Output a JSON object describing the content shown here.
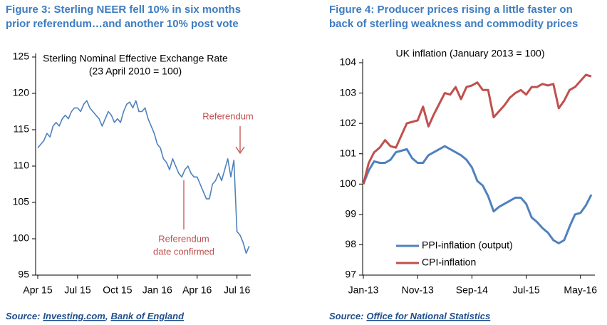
{
  "chart_data": [
    {
      "type": "line",
      "figure_title": [
        "Figure 3: Sterling NEER fell 10% in six months",
        "prior referendum…and another 10% post vote"
      ],
      "title": "Sterling Nominal Effective Exchange Rate",
      "subtitle": "(23 April 2010 = 100)",
      "color": "#4f81bd",
      "values": [
        112.5,
        113,
        113.5,
        114.5,
        114,
        115.5,
        116,
        115.5,
        116.5,
        117,
        116.5,
        117.5,
        118,
        118,
        117.5,
        118.5,
        119,
        118,
        117.5,
        117,
        116.5,
        115.5,
        116.5,
        117.5,
        117,
        116,
        116.5,
        116,
        117.5,
        118.5,
        118.8,
        118,
        119,
        117.5,
        117.5,
        118,
        116.5,
        115.5,
        114.5,
        113,
        112.5,
        111,
        110.5,
        109.5,
        111,
        110,
        109,
        108.5,
        109.5,
        110,
        109,
        108.5,
        108.5,
        107.5,
        106.5,
        105.5,
        105.5,
        107.5,
        108,
        109,
        108,
        109.5,
        111,
        108.5,
        110.8,
        101,
        100.5,
        99.5,
        98,
        99
      ],
      "xlim": [
        -0.7,
        69.5
      ],
      "xticks": [
        {
          "value": 0,
          "label": "Apr 15"
        },
        {
          "value": 13,
          "label": "Jul 15"
        },
        {
          "value": 26,
          "label": "Oct 15"
        },
        {
          "value": 39,
          "label": "Jan 16"
        },
        {
          "value": 52,
          "label": "Apr 16"
        },
        {
          "value": 65,
          "label": "Jul 16"
        }
      ],
      "ylim": [
        95,
        125
      ],
      "yticks": [
        95,
        100,
        105,
        110,
        115,
        120,
        125
      ],
      "grid": false,
      "annotations": [
        {
          "text": [
            "Referendum"
          ]
        },
        {
          "text": [
            "Referendum",
            "date confirmed"
          ]
        }
      ],
      "source": {
        "label": "Source:",
        "links": [
          "Investing.com",
          "Bank of England"
        ],
        "separator": ","
      }
    },
    {
      "type": "line",
      "figure_title": [
        "Figure 4: Producer prices rising a little faster on",
        "back of sterling weakness and commodity prices"
      ],
      "title": "UK inflation (January 2013 = 100)",
      "categories": [
        "Jan-13",
        null,
        null,
        null,
        null,
        null,
        null,
        null,
        null,
        null,
        "Nov-13",
        null,
        null,
        null,
        null,
        null,
        null,
        null,
        null,
        null,
        "Sep-14",
        null,
        null,
        null,
        null,
        null,
        null,
        null,
        null,
        null,
        "Jul-15",
        null,
        null,
        null,
        null,
        null,
        null,
        null,
        null,
        null,
        "May-16",
        null,
        null
      ],
      "series": [
        {
          "name": "PPI-inflation (output)",
          "color": "#4f81bd",
          "values": [
            100,
            100.45,
            100.75,
            100.7,
            100.7,
            100.8,
            101.05,
            101.1,
            101.15,
            100.85,
            100.7,
            100.7,
            100.95,
            101.05,
            101.15,
            101.25,
            101.15,
            101.05,
            100.95,
            100.8,
            100.55,
            100.1,
            99.95,
            99.6,
            99.1,
            99.25,
            99.35,
            99.45,
            99.55,
            99.55,
            99.35,
            98.9,
            98.75,
            98.55,
            98.4,
            98.15,
            98.05,
            98.15,
            98.6,
            99,
            99.05,
            99.3,
            99.65
          ]
        },
        {
          "name": "CPI-inflation",
          "color": "#c0504d",
          "values": [
            100,
            100.7,
            101.05,
            101.2,
            101.45,
            101.25,
            101.2,
            101.6,
            102,
            102.05,
            102.1,
            102.55,
            101.9,
            102.3,
            102.65,
            103,
            102.95,
            103.2,
            102.8,
            103.2,
            103.25,
            103.35,
            103.1,
            103.1,
            102.2,
            102.4,
            102.6,
            102.85,
            103,
            103.1,
            102.95,
            103.2,
            103.2,
            103.3,
            103.25,
            103.3,
            102.5,
            102.75,
            103.1,
            103.2,
            103.4,
            103.6,
            103.55
          ]
        }
      ],
      "ylim": [
        97,
        104
      ],
      "yticks": [
        97,
        98,
        99,
        100,
        101,
        102,
        103,
        104
      ],
      "grid": false,
      "source": {
        "label": "Source:",
        "links": [
          "Office for National Statistics"
        ]
      }
    }
  ]
}
